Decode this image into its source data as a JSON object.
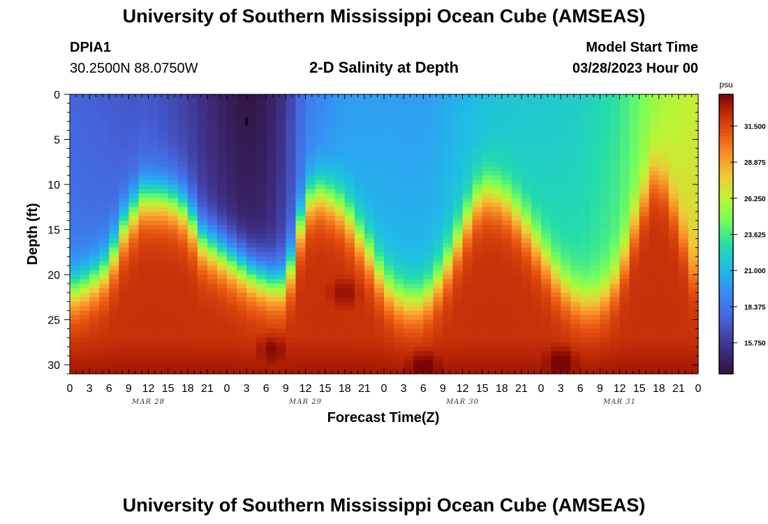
{
  "page": {
    "title_top": "University of Southern Mississippi Ocean Cube (AMSEAS)",
    "title_bottom": "University of Southern Mississippi Ocean Cube (AMSEAS)",
    "station_id": "DPIA1",
    "station_coords": "30.2500N  88.0750W",
    "subtitle": "2-D Salinity at Depth",
    "model_start_label": "Model Start Time",
    "model_start_value": "03/28/2023 Hour 00"
  },
  "chart_data": {
    "type": "heatmap",
    "title": "2-D Salinity at Depth",
    "xlabel": "Forecast Time(Z)",
    "ylabel": "Depth (ft)",
    "x_range_hours": [
      0,
      96
    ],
    "y_range_ft": [
      0,
      31
    ],
    "x_tick_labels": [
      "0",
      "3",
      "6",
      "9",
      "12",
      "15",
      "18",
      "21",
      "0",
      "3",
      "6",
      "9",
      "12",
      "15",
      "18",
      "21",
      "0",
      "3",
      "6",
      "9",
      "12",
      "15",
      "18",
      "21",
      "0",
      "3",
      "6",
      "9",
      "12",
      "15",
      "18",
      "21",
      "0"
    ],
    "x_tick_hours": [
      0,
      3,
      6,
      9,
      12,
      15,
      18,
      21,
      24,
      27,
      30,
      33,
      36,
      39,
      42,
      45,
      48,
      51,
      54,
      57,
      60,
      63,
      66,
      69,
      72,
      75,
      78,
      81,
      84,
      87,
      90,
      93,
      96
    ],
    "month_labels": [
      {
        "label": "MAR 28",
        "hour": 12
      },
      {
        "label": "MAR 29",
        "hour": 36
      },
      {
        "label": "MAR 30",
        "hour": 60
      },
      {
        "label": "MAR 31",
        "hour": 84
      }
    ],
    "y_tick_labels": [
      "0",
      "5",
      "10",
      "15",
      "20",
      "25",
      "30"
    ],
    "y_tick_values": [
      0,
      5,
      10,
      15,
      20,
      25,
      30
    ],
    "colorbar": {
      "unit": "psu",
      "min": 13.5,
      "max": 33.8,
      "tick_labels": [
        "31.500",
        "28.875",
        "26.250",
        "23.625",
        "21.000",
        "18.375",
        "15.750"
      ],
      "tick_values": [
        31.5,
        28.875,
        26.25,
        23.625,
        21.0,
        18.375,
        15.75
      ]
    },
    "halocline_depth_ft": {
      "hours": [
        0,
        3,
        6,
        8,
        11,
        15,
        18,
        20,
        22,
        25,
        28,
        31,
        33,
        34.5,
        36,
        38,
        39.5,
        42,
        44,
        46,
        48,
        51,
        54,
        57,
        60,
        62,
        63.5,
        66,
        69,
        72,
        75,
        78,
        81,
        84,
        86,
        88,
        89.5,
        91,
        93,
        95,
        96
      ],
      "depth": [
        22,
        21,
        19,
        15,
        11.5,
        11.5,
        13,
        16,
        17,
        18.5,
        20,
        21,
        21,
        17,
        12,
        11,
        11.5,
        13,
        15.5,
        18,
        21,
        23,
        23,
        20,
        15,
        12,
        11,
        11.5,
        14,
        17.5,
        21,
        23,
        23,
        20,
        15,
        11,
        8.5,
        10,
        14,
        19,
        22
      ]
    },
    "surface_salinity_psu": {
      "hours": [
        0,
        6,
        9,
        12,
        18,
        24,
        27,
        30,
        33,
        36,
        42,
        48,
        54,
        60,
        66,
        72,
        78,
        84,
        90,
        96
      ],
      "values": [
        18.5,
        18.0,
        17.5,
        17.5,
        16.5,
        15.0,
        14.5,
        15.0,
        16.5,
        19.0,
        20.5,
        21.0,
        21.0,
        21.5,
        22.0,
        22.5,
        23.0,
        24.0,
        26.0,
        27.5
      ]
    },
    "bottom_salinity_psu": 32.2,
    "bottom_salinity_max_psu": 33.7
  }
}
